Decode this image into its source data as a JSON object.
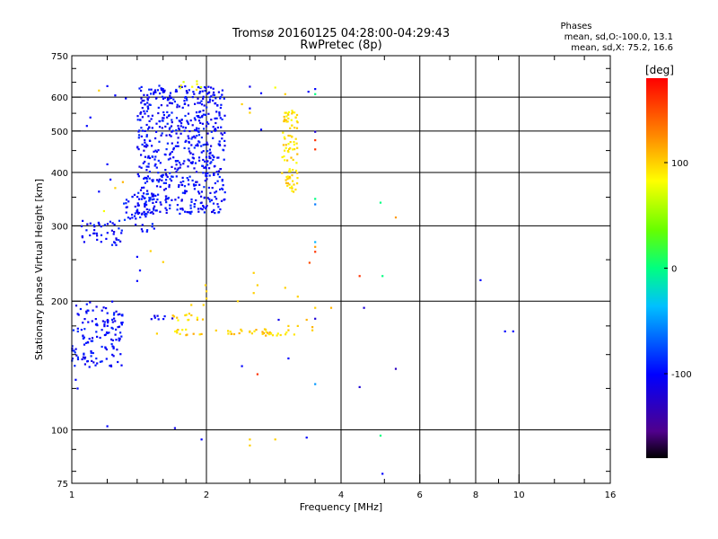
{
  "chart_data": {
    "type": "scatter",
    "title": "Tromsø 20160125 04:28:00-04:29:43",
    "subtitle": "RwPretec (8p)",
    "stats_header": "Phases",
    "stats_line1": "mean, sd,O:-100.0, 13.1",
    "stats_line2": "mean, sd,X:  75.2, 16.6",
    "xlabel": "Frequency [MHz]",
    "ylabel": "Stationary phase Virtual Height [km]",
    "x_scale": "log",
    "y_scale": "log",
    "xlim": [
      1,
      16
    ],
    "ylim": [
      75,
      750
    ],
    "x_ticks": [
      1,
      2,
      4,
      6,
      8,
      10,
      16
    ],
    "y_ticks": [
      75,
      100,
      200,
      300,
      400,
      500,
      600,
      750
    ],
    "grid": true,
    "colorbar": {
      "label": "[deg]",
      "min": -180,
      "max": 180,
      "ticks": [
        100,
        0,
        -100
      ]
    },
    "clusters": [
      {
        "phase": -100,
        "n": 140,
        "x": [
          1.0,
          1.3
        ],
        "y": [
          140,
          200
        ]
      },
      {
        "phase": -100,
        "n": 45,
        "x": [
          1.05,
          1.3
        ],
        "y": [
          270,
          310
        ]
      },
      {
        "phase": -100,
        "n": 650,
        "x": [
          1.4,
          2.2
        ],
        "y": [
          320,
          640
        ]
      },
      {
        "phase": -95,
        "n": 60,
        "x": [
          1.3,
          1.55
        ],
        "y": [
          290,
          360
        ]
      },
      {
        "phase": 95,
        "n": 90,
        "x": [
          2.95,
          3.2
        ],
        "y": [
          360,
          560
        ]
      },
      {
        "phase": 100,
        "n": 45,
        "x": [
          1.7,
          3.15
        ],
        "y": [
          166,
          172
        ]
      },
      {
        "phase": 95,
        "n": 12,
        "x": [
          1.6,
          2.0
        ],
        "y": [
          180,
          186
        ]
      },
      {
        "phase": -110,
        "n": 8,
        "x": [
          1.5,
          1.7
        ],
        "y": [
          181,
          185
        ]
      },
      {
        "phase": 80,
        "n": 8,
        "x": [
          1.7,
          2.05
        ],
        "y": [
          620,
          660
        ]
      }
    ],
    "points": [
      {
        "x": 1.03,
        "y": 125,
        "phase": -100
      },
      {
        "x": 1.02,
        "y": 131,
        "phase": -100
      },
      {
        "x": 1.2,
        "y": 102,
        "phase": -100
      },
      {
        "x": 1.7,
        "y": 101,
        "phase": -110
      },
      {
        "x": 1.95,
        "y": 95,
        "phase": -100
      },
      {
        "x": 2.5,
        "y": 92,
        "phase": 100
      },
      {
        "x": 2.5,
        "y": 95,
        "phase": 100
      },
      {
        "x": 2.85,
        "y": 95,
        "phase": 100
      },
      {
        "x": 3.35,
        "y": 96,
        "phase": -100
      },
      {
        "x": 3.5,
        "y": 128,
        "phase": -50
      },
      {
        "x": 4.4,
        "y": 126,
        "phase": -120
      },
      {
        "x": 4.9,
        "y": 97,
        "phase": 0
      },
      {
        "x": 4.95,
        "y": 79,
        "phase": -100
      },
      {
        "x": 5.3,
        "y": 139,
        "phase": -130
      },
      {
        "x": 2.4,
        "y": 141,
        "phase": -100
      },
      {
        "x": 2.6,
        "y": 135,
        "phase": 160
      },
      {
        "x": 3.05,
        "y": 147,
        "phase": -100
      },
      {
        "x": 3.45,
        "y": 171,
        "phase": 100
      },
      {
        "x": 3.5,
        "y": 182,
        "phase": -120
      },
      {
        "x": 3.5,
        "y": 193,
        "phase": 100
      },
      {
        "x": 3.8,
        "y": 193,
        "phase": 110
      },
      {
        "x": 4.5,
        "y": 193,
        "phase": -120
      },
      {
        "x": 3.4,
        "y": 246,
        "phase": 150
      },
      {
        "x": 3.5,
        "y": 261,
        "phase": 160
      },
      {
        "x": 3.5,
        "y": 268,
        "phase": 120
      },
      {
        "x": 3.5,
        "y": 275,
        "phase": -40
      },
      {
        "x": 4.4,
        "y": 229,
        "phase": 160
      },
      {
        "x": 4.95,
        "y": 229,
        "phase": 0
      },
      {
        "x": 8.2,
        "y": 224,
        "phase": -100
      },
      {
        "x": 9.3,
        "y": 170,
        "phase": -100
      },
      {
        "x": 9.7,
        "y": 170,
        "phase": -100
      },
      {
        "x": 4.9,
        "y": 340,
        "phase": 0
      },
      {
        "x": 5.3,
        "y": 314,
        "phase": 120
      },
      {
        "x": 3.5,
        "y": 347,
        "phase": 0
      },
      {
        "x": 3.5,
        "y": 337,
        "phase": -60
      },
      {
        "x": 3.5,
        "y": 453,
        "phase": 160
      },
      {
        "x": 3.5,
        "y": 476,
        "phase": 160
      },
      {
        "x": 3.5,
        "y": 498,
        "phase": -120
      },
      {
        "x": 3.5,
        "y": 610,
        "phase": 0
      },
      {
        "x": 3.5,
        "y": 627,
        "phase": -100
      },
      {
        "x": 3.38,
        "y": 618,
        "phase": -100
      },
      {
        "x": 3.0,
        "y": 610,
        "phase": 100
      },
      {
        "x": 2.85,
        "y": 632,
        "phase": 80
      },
      {
        "x": 2.4,
        "y": 578,
        "phase": 100
      },
      {
        "x": 2.5,
        "y": 552,
        "phase": 100
      },
      {
        "x": 2.5,
        "y": 565,
        "phase": -100
      },
      {
        "x": 2.65,
        "y": 504,
        "phase": -100
      },
      {
        "x": 2.65,
        "y": 613,
        "phase": -100
      },
      {
        "x": 2.5,
        "y": 635,
        "phase": -110
      },
      {
        "x": 1.08,
        "y": 514,
        "phase": -100
      },
      {
        "x": 1.1,
        "y": 538,
        "phase": -100
      },
      {
        "x": 1.2,
        "y": 637,
        "phase": -100
      },
      {
        "x": 1.25,
        "y": 606,
        "phase": -100
      },
      {
        "x": 1.15,
        "y": 622,
        "phase": 100
      },
      {
        "x": 1.32,
        "y": 596,
        "phase": -100
      },
      {
        "x": 1.22,
        "y": 385,
        "phase": -100
      },
      {
        "x": 1.25,
        "y": 368,
        "phase": 100
      },
      {
        "x": 1.15,
        "y": 361,
        "phase": -100
      },
      {
        "x": 1.18,
        "y": 325,
        "phase": 80
      },
      {
        "x": 1.2,
        "y": 418,
        "phase": -100
      },
      {
        "x": 1.3,
        "y": 380,
        "phase": 110
      },
      {
        "x": 1.35,
        "y": 312,
        "phase": -100
      },
      {
        "x": 1.4,
        "y": 254,
        "phase": -100
      },
      {
        "x": 1.42,
        "y": 236,
        "phase": -100
      },
      {
        "x": 1.4,
        "y": 223,
        "phase": -100
      },
      {
        "x": 2.55,
        "y": 233,
        "phase": 100
      },
      {
        "x": 2.55,
        "y": 209,
        "phase": 100
      },
      {
        "x": 2.35,
        "y": 200,
        "phase": 100
      },
      {
        "x": 2.6,
        "y": 218,
        "phase": 100
      },
      {
        "x": 2.0,
        "y": 211,
        "phase": 100
      },
      {
        "x": 1.97,
        "y": 196,
        "phase": 100
      },
      {
        "x": 2.0,
        "y": 203,
        "phase": 100
      },
      {
        "x": 1.99,
        "y": 218,
        "phase": 100
      },
      {
        "x": 1.6,
        "y": 247,
        "phase": 100
      },
      {
        "x": 1.5,
        "y": 262,
        "phase": 100
      },
      {
        "x": 3.2,
        "y": 205,
        "phase": 100
      },
      {
        "x": 3.0,
        "y": 215,
        "phase": 100
      },
      {
        "x": 3.35,
        "y": 181,
        "phase": 110
      },
      {
        "x": 3.45,
        "y": 174,
        "phase": 110
      },
      {
        "x": 2.9,
        "y": 181,
        "phase": -110
      },
      {
        "x": 3.05,
        "y": 175,
        "phase": 100
      },
      {
        "x": 3.2,
        "y": 175,
        "phase": 100
      },
      {
        "x": 2.5,
        "y": 170,
        "phase": 100
      },
      {
        "x": 2.7,
        "y": 172,
        "phase": 100
      },
      {
        "x": 1.55,
        "y": 168,
        "phase": 100
      },
      {
        "x": 1.85,
        "y": 196,
        "phase": 100
      },
      {
        "x": 1.83,
        "y": 187,
        "phase": 100
      }
    ]
  }
}
